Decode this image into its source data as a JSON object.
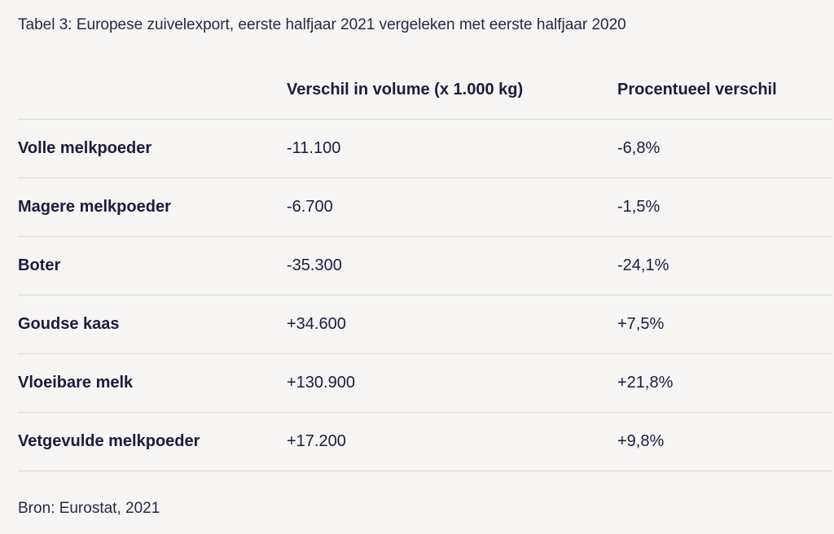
{
  "caption": "Tabel 3: Europese zuivelexport, eerste halfjaar 2021 vergeleken met eerste halfjaar 2020",
  "table": {
    "headers": [
      "",
      "Verschil in volume (x 1.000 kg)",
      "Procentueel verschil"
    ],
    "rows": [
      {
        "product": "Volle melkpoeder",
        "volume": "-11.100",
        "percent": "-6,8%"
      },
      {
        "product": "Magere melkpoeder",
        "volume": "-6.700",
        "percent": "-1,5%"
      },
      {
        "product": "Boter",
        "volume": "-35.300",
        "percent": "-24,1%"
      },
      {
        "product": "Goudse kaas",
        "volume": "+34.600",
        "percent": "+7,5%"
      },
      {
        "product": "Vloeibare melk",
        "volume": "+130.900",
        "percent": "+21,8%"
      },
      {
        "product": "Vetgevulde melkpoeder",
        "volume": "+17.200",
        "percent": "+9,8%"
      }
    ]
  },
  "source": "Bron: Eurostat, 2021"
}
